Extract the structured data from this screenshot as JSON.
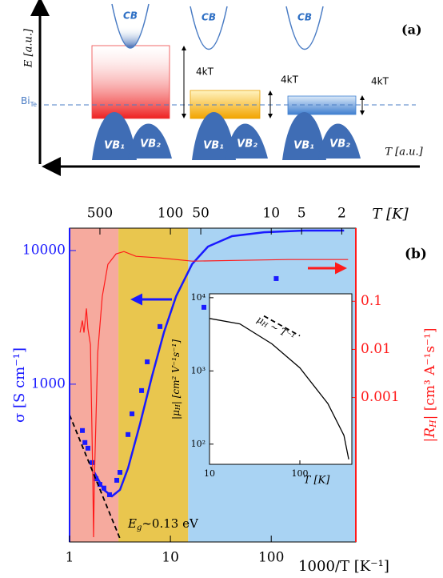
{
  "diagram": {
    "label": "(a)",
    "y_axis_label": "E [a.u.]",
    "x_axis_label": "T [a.u.]",
    "level_label": "Bi",
    "level_label_sub": "Te",
    "bands": [
      {
        "cb": "CB",
        "vb1": "VB₁",
        "vb2": "VB₂",
        "gap": "4kT"
      },
      {
        "cb": "CB",
        "vb1": "VB₁",
        "vb2": "VB₂",
        "gap": "4kT"
      },
      {
        "cb": "CB",
        "vb1": "VB₁",
        "vb2": "VB₂",
        "gap": "4kT"
      }
    ]
  },
  "chart_data": [
    {
      "type": "line",
      "label": "(b)",
      "x_label": "1000/T  [K⁻¹]",
      "x2_label": "T [K]",
      "y_label": "σ [S cm⁻¹]",
      "y2_label_parts": [
        "|R",
        "H",
        "| [cm³ A⁻¹s⁻¹]"
      ],
      "annotation_parts": [
        "E",
        "g",
        "∼0.13 eV"
      ],
      "x_log": true,
      "y_log": true,
      "y2_log": true,
      "xlim": [
        1,
        690
      ],
      "ylim": [
        66,
        14700
      ],
      "y2lim": [
        1e-06,
        3.3
      ],
      "xticks": [
        1,
        10,
        100
      ],
      "yticks": [
        1000,
        10000
      ],
      "y2ticks": [
        0.001,
        0.01,
        0.1
      ],
      "x2ticks": [
        {
          "value": 2,
          "label": "500"
        },
        {
          "value": 10,
          "label": "100"
        },
        {
          "value": 20,
          "label": "50"
        },
        {
          "value": 100,
          "label": "10"
        },
        {
          "value": 200,
          "label": "5"
        },
        {
          "value": 500,
          "label": "2"
        }
      ],
      "y_color": "#1a1aff",
      "y2_color": "#ff1a1a",
      "regions": [
        {
          "color": "#f6aa9e",
          "x": [
            1,
            3.05
          ]
        },
        {
          "color": "#e9c64e",
          "x": [
            3.05,
            15
          ]
        },
        {
          "color": "#a9d3f3",
          "x": [
            15,
            690
          ]
        }
      ],
      "series": [
        {
          "style": "markers",
          "color": "#1a1aff",
          "x": [
            1.34,
            1.42,
            1.52,
            1.67,
            1.83,
            2.0,
            2.19,
            2.49,
            2.94,
            3.16,
            3.8,
            4.16,
            5.18,
            5.89,
            7.88,
            21.5,
            112
          ],
          "values": [
            450,
            366,
            332,
            259,
            196,
            178,
            167,
            149,
            191,
            219,
            420,
            600,
            896,
            1470,
            2700,
            3760,
            6170
          ]
        },
        {
          "style": "line",
          "color": "#1a1aff",
          "x": [
            1.76,
            2.19,
            2.63,
            3.16,
            3.8,
            4.99,
            6.57,
            8.64,
            11.4,
            16.4,
            23.6,
            40.8,
            84.9,
            211,
            528
          ],
          "values": [
            219,
            162,
            145,
            162,
            235,
            502,
            1148,
            2450,
            4560,
            7910,
            10700,
            12800,
            13700,
            14100,
            14100
          ]
        },
        {
          "style": "thin",
          "color": "#ff1a1a",
          "axis": "y2",
          "x": [
            1.27,
            1.34,
            1.39,
            1.47,
            1.52,
            1.61,
            1.7,
            1.73,
            1.76,
            1.9,
            2.11,
            2.4,
            2.89,
            3.46,
            4.56,
            7.88,
            16.4,
            49,
            147,
            578
          ],
          "values": [
            0.0224,
            0.0398,
            0.0224,
            0.0708,
            0.0271,
            0.0126,
            1.86e-05,
            1.26e-06,
            1.86e-05,
            0.00858,
            0.126,
            0.585,
            0.962,
            1.08,
            0.857,
            0.794,
            0.681,
            0.708,
            0.736,
            0.736
          ]
        },
        {
          "style": "dashed",
          "color": "#000000",
          "x": [
            1,
            3.16
          ],
          "values": [
            590,
            70
          ]
        }
      ]
    },
    {
      "type": "line",
      "x_label": "T [K]",
      "y_label_parts": [
        "|μ",
        "H",
        "| [cm² V⁻¹s⁻¹]"
      ],
      "annotation_parts": [
        "μ",
        "H",
        " ∼ T⁻¹"
      ],
      "x_log": true,
      "y_log": true,
      "xlim": [
        10,
        376
      ],
      "ylim": [
        53,
        11300
      ],
      "xticks": [
        10,
        100
      ],
      "yticks": [
        {
          "value": 100,
          "label": "10²"
        },
        {
          "value": 1000,
          "label": "10³"
        },
        {
          "value": 10000,
          "label": "10⁴"
        }
      ],
      "series": [
        {
          "style": "line",
          "color": "#000000",
          "x": [
            10,
            21.7,
            49,
            100,
            204,
            307,
            347
          ],
          "values": [
            5210,
            4380,
            2340,
            1100,
            358,
            132,
            62
          ]
        },
        {
          "style": "dashed",
          "color": "#000000",
          "x": [
            40,
            100
          ],
          "values": [
            5620,
            3010
          ]
        }
      ]
    }
  ]
}
